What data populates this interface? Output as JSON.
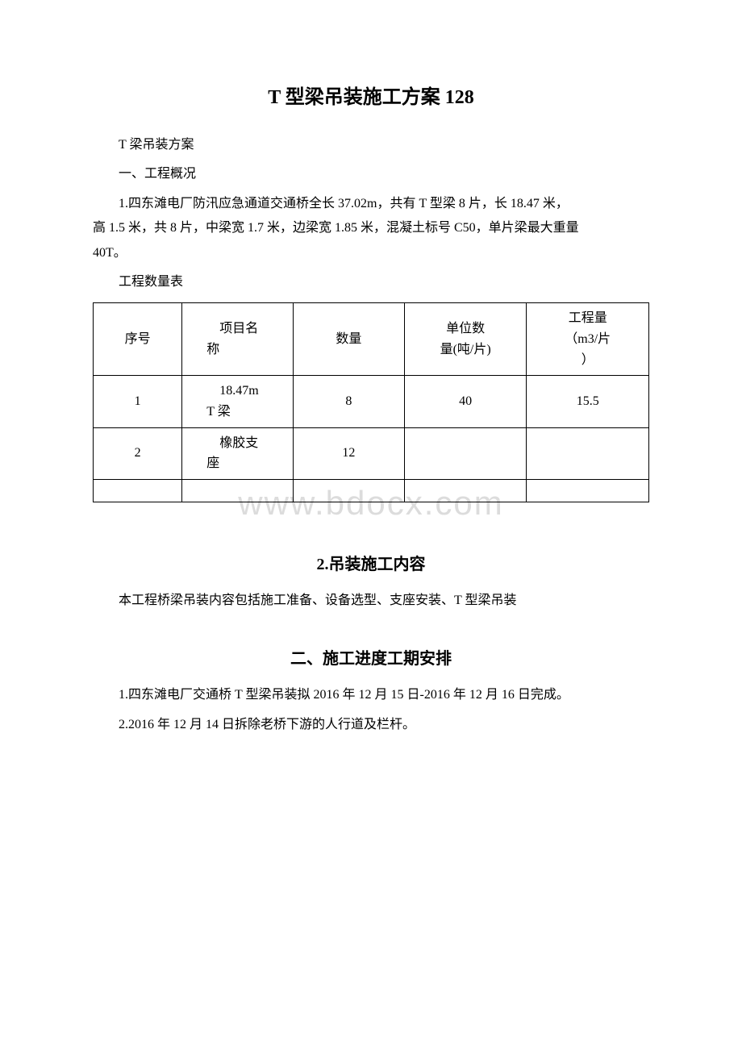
{
  "watermark": "www.bdocx.com",
  "title": "T 型梁吊装施工方案 128",
  "paragraphs": {
    "p1": "T 梁吊装方案",
    "p2": "一、工程概况",
    "p3_line1": "1.四东滩电厂防汛应急通道交通桥全长 37.02m，共有 T 型梁 8 片，长 18.47 米，",
    "p3_line2": "高 1.5 米，共 8 片，中梁宽 1.7 米，边梁宽 1.85 米，混凝土标号 C50，单片梁最大重量",
    "p3_line3": "40T。",
    "p4": "工程数量表"
  },
  "table": {
    "headers": {
      "col1": "序号",
      "col2_l1": "项目名",
      "col2_l2": "称",
      "col3": "数量",
      "col4_l1": "单位数",
      "col4_l2": "量(吨/片)",
      "col5_l1": "工程量",
      "col5_l2": "（m3/片",
      "col5_l3": "）"
    },
    "rows": [
      {
        "seq": "1",
        "name_l1": "18.47m",
        "name_l2": "T 梁",
        "qty": "8",
        "unit": "40",
        "vol": "15.5"
      },
      {
        "seq": "2",
        "name_l1": "橡胶支",
        "name_l2": "座",
        "qty": "12",
        "unit": "",
        "vol": ""
      }
    ]
  },
  "section2": {
    "title": "2.吊装施工内容",
    "body": "本工程桥梁吊装内容包括施工准备、设备选型、支座安装、T 型梁吊装"
  },
  "section3": {
    "title": "二、施工进度工期安排",
    "p1": "1.四东滩电厂交通桥 T 型梁吊装拟 2016 年 12 月 15 日-2016 年 12 月 16 日完成。",
    "p2": "2.2016 年 12 月 14 日拆除老桥下游的人行道及栏杆。"
  },
  "colors": {
    "text": "#000000",
    "background": "#ffffff",
    "border": "#000000",
    "watermark": "#dcdcdc"
  }
}
